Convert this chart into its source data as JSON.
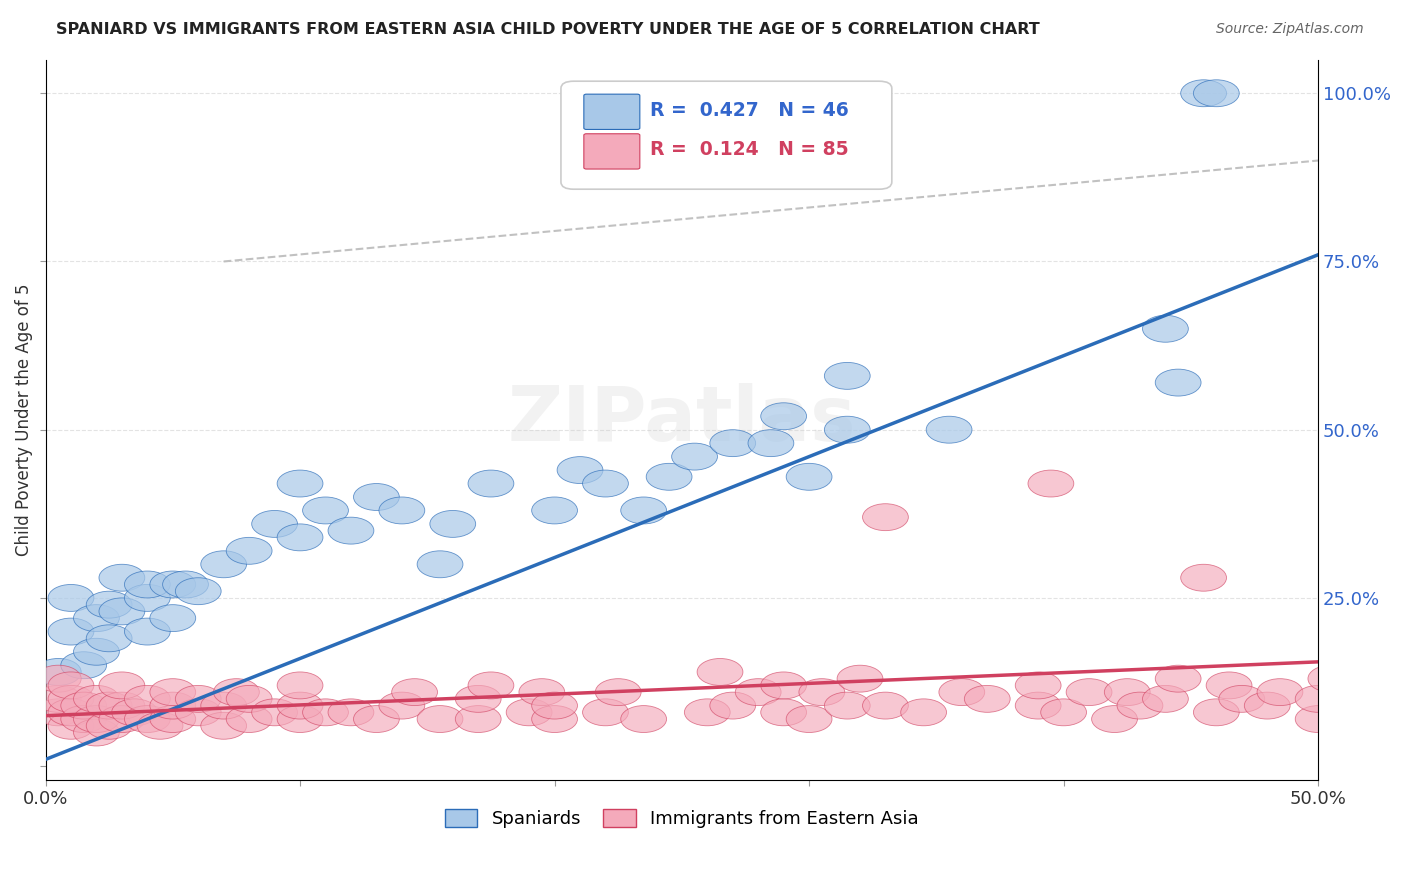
{
  "title": "SPANIARD VS IMMIGRANTS FROM EASTERN ASIA CHILD POVERTY UNDER THE AGE OF 5 CORRELATION CHART",
  "source": "Source: ZipAtlas.com",
  "ylabel": "Child Poverty Under the Age of 5",
  "xlim": [
    0.0,
    0.5
  ],
  "ylim": [
    -0.02,
    1.05
  ],
  "blue_color": "#A8C8E8",
  "blue_line_color": "#2B6CB8",
  "pink_color": "#F4AABB",
  "pink_line_color": "#D04060",
  "dashed_line_color": "#BBBBBB",
  "legend_r1": "R = 0.427",
  "legend_n1": "N = 46",
  "legend_r2": "R = 0.124",
  "legend_n2": "N = 85",
  "legend_label1": "Spaniards",
  "legend_label2": "Immigrants from Eastern Asia",
  "watermark": "ZIPatlas",
  "blue_line_x0": 0.0,
  "blue_line_y0": 0.01,
  "blue_line_x1": 0.5,
  "blue_line_y1": 0.76,
  "pink_line_x0": 0.0,
  "pink_line_y0": 0.075,
  "pink_line_x1": 0.5,
  "pink_line_y1": 0.155,
  "dash_line_x0": 0.07,
  "dash_line_y0": 0.75,
  "dash_line_x1": 0.5,
  "dash_line_y1": 0.9,
  "blue_x": [
    0.005,
    0.01,
    0.01,
    0.015,
    0.02,
    0.02,
    0.025,
    0.025,
    0.03,
    0.03,
    0.04,
    0.04,
    0.04,
    0.05,
    0.05,
    0.055,
    0.06,
    0.07,
    0.08,
    0.09,
    0.1,
    0.1,
    0.11,
    0.12,
    0.13,
    0.14,
    0.155,
    0.16,
    0.175,
    0.2,
    0.21,
    0.22,
    0.235,
    0.245,
    0.255,
    0.27,
    0.285,
    0.29,
    0.3,
    0.315,
    0.315,
    0.355,
    0.44,
    0.445,
    0.455,
    0.46
  ],
  "blue_y": [
    0.14,
    0.2,
    0.25,
    0.15,
    0.17,
    0.22,
    0.19,
    0.24,
    0.23,
    0.28,
    0.2,
    0.25,
    0.27,
    0.22,
    0.27,
    0.27,
    0.26,
    0.3,
    0.32,
    0.36,
    0.34,
    0.42,
    0.38,
    0.35,
    0.4,
    0.38,
    0.3,
    0.36,
    0.42,
    0.38,
    0.44,
    0.42,
    0.38,
    0.43,
    0.46,
    0.48,
    0.48,
    0.52,
    0.43,
    0.5,
    0.58,
    0.5,
    0.65,
    0.57,
    1.0,
    1.0
  ],
  "pink_x": [
    0.005,
    0.005,
    0.005,
    0.01,
    0.01,
    0.01,
    0.01,
    0.015,
    0.015,
    0.02,
    0.02,
    0.02,
    0.025,
    0.025,
    0.03,
    0.03,
    0.03,
    0.035,
    0.04,
    0.04,
    0.045,
    0.05,
    0.05,
    0.05,
    0.06,
    0.06,
    0.07,
    0.07,
    0.075,
    0.08,
    0.08,
    0.09,
    0.1,
    0.1,
    0.1,
    0.11,
    0.12,
    0.13,
    0.14,
    0.145,
    0.155,
    0.17,
    0.17,
    0.175,
    0.19,
    0.195,
    0.2,
    0.2,
    0.22,
    0.225,
    0.235,
    0.26,
    0.265,
    0.27,
    0.28,
    0.29,
    0.29,
    0.3,
    0.305,
    0.315,
    0.32,
    0.33,
    0.345,
    0.36,
    0.37,
    0.39,
    0.39,
    0.4,
    0.41,
    0.42,
    0.425,
    0.43,
    0.44,
    0.445,
    0.46,
    0.465,
    0.47,
    0.48,
    0.485,
    0.5,
    0.5,
    0.505,
    0.33,
    0.395,
    0.455
  ],
  "pink_y": [
    0.08,
    0.1,
    0.13,
    0.06,
    0.08,
    0.1,
    0.12,
    0.07,
    0.09,
    0.05,
    0.07,
    0.1,
    0.06,
    0.09,
    0.07,
    0.09,
    0.12,
    0.08,
    0.07,
    0.1,
    0.06,
    0.07,
    0.09,
    0.11,
    0.08,
    0.1,
    0.06,
    0.09,
    0.11,
    0.07,
    0.1,
    0.08,
    0.07,
    0.09,
    0.12,
    0.08,
    0.08,
    0.07,
    0.09,
    0.11,
    0.07,
    0.07,
    0.1,
    0.12,
    0.08,
    0.11,
    0.07,
    0.09,
    0.08,
    0.11,
    0.07,
    0.08,
    0.14,
    0.09,
    0.11,
    0.08,
    0.12,
    0.07,
    0.11,
    0.09,
    0.13,
    0.09,
    0.08,
    0.11,
    0.1,
    0.09,
    0.12,
    0.08,
    0.11,
    0.07,
    0.11,
    0.09,
    0.1,
    0.13,
    0.08,
    0.12,
    0.1,
    0.09,
    0.11,
    0.07,
    0.1,
    0.13,
    0.37,
    0.42,
    0.28
  ]
}
